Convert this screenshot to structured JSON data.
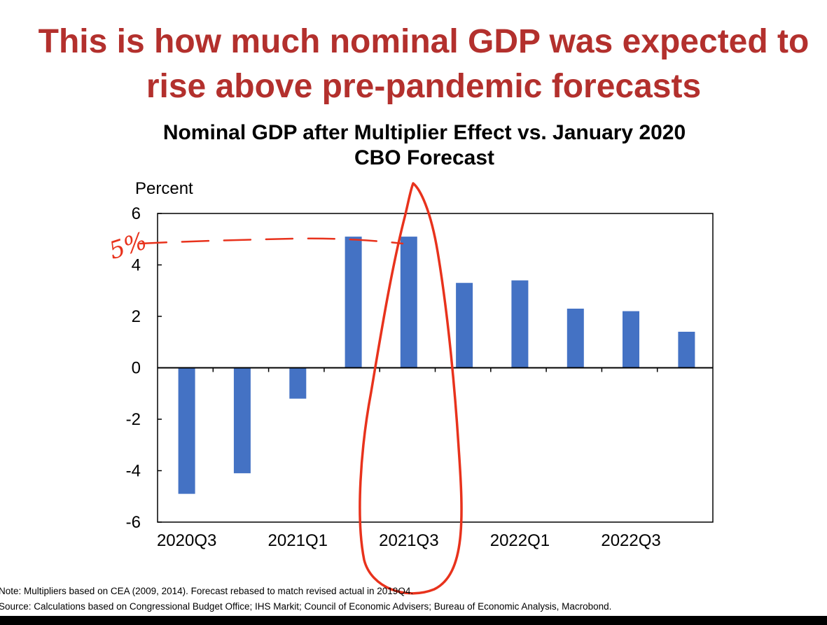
{
  "slide": {
    "title_line1": "This is how much nominal GDP was expected to",
    "title_line2": "rise above pre-pandemic forecasts"
  },
  "chart_data": {
    "type": "bar",
    "title_line1": "Nominal GDP after Multiplier Effect vs. January 2020",
    "title_line2": "CBO Forecast",
    "ylabel": "Percent",
    "xlabel": "",
    "categories": [
      "2020Q3",
      "2020Q4",
      "2021Q1",
      "2021Q2",
      "2021Q3",
      "2021Q4",
      "2022Q1",
      "2022Q2",
      "2022Q3",
      "2022Q4"
    ],
    "x_tick_labels": [
      "2020Q3",
      "",
      "2021Q1",
      "",
      "2021Q3",
      "",
      "2022Q1",
      "",
      "2022Q3",
      ""
    ],
    "values": [
      -4.9,
      -4.1,
      -1.2,
      5.1,
      5.1,
      3.3,
      3.4,
      2.3,
      2.2,
      1.4
    ],
    "ylim": [
      -6,
      6
    ],
    "yticks": [
      "-6",
      "-4",
      "-2",
      "0",
      "2",
      "4",
      "6"
    ],
    "grid": false,
    "bar_color": "#4472c4",
    "annotation_color": "#e8321c",
    "annotation_text": "5%"
  },
  "notes": {
    "note": "Note: Multipliers based on CEA (2009, 2014). Forecast rebased to match revised actual in 2019Q4.",
    "source": "Source: Calculations based on Congressional Budget Office; IHS Markit; Council of Economic Advisers; Bureau of Economic Analysis, Macrobond."
  }
}
